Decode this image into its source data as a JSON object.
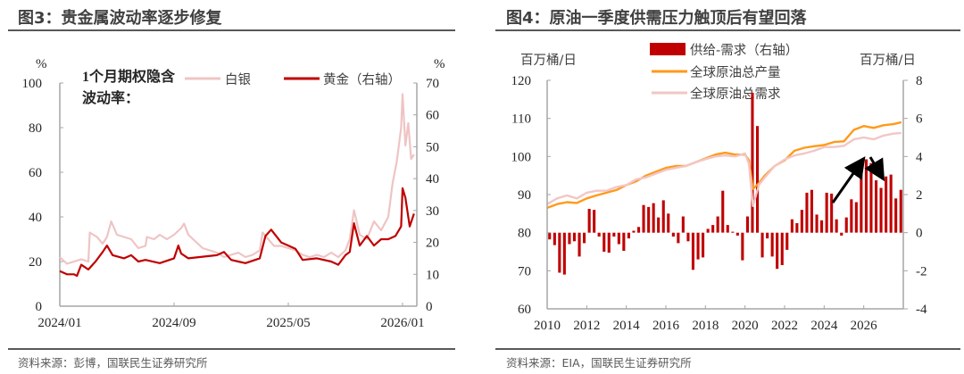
{
  "left": {
    "title": "图3：贵金属波动率逐步修复",
    "source": "资料来源：彭博，国联民生证券研究所",
    "chart_data": {
      "type": "line",
      "annotation": [
        "1个月期权隐含",
        "波动率："
      ],
      "y_unit_left": "%",
      "y_unit_right": "%",
      "x_ticks": [
        "2024/01",
        "2024/09",
        "2025/05",
        "2026/01"
      ],
      "x_tick_months": [
        0,
        8,
        16,
        24
      ],
      "ylim_left": [
        0,
        100
      ],
      "yticks_left": [
        0,
        20,
        40,
        60,
        80,
        100
      ],
      "ylim_right": [
        0,
        70
      ],
      "yticks_right": [
        0,
        10,
        20,
        30,
        40,
        50,
        60,
        70
      ],
      "legend_placement": "top",
      "grid": false,
      "x_unit_note": "months since 2024/01",
      "series": [
        {
          "name": "白银",
          "axis": "left",
          "color": "#efc4c4",
          "x": [
            0,
            0.5,
            1,
            1.5,
            2,
            2.1,
            2.6,
            3,
            3.3,
            3.6,
            4,
            4.5,
            5,
            5.5,
            6,
            6.1,
            6.6,
            7,
            7.5,
            8,
            8.5,
            8.7,
            9,
            9.5,
            10,
            10.5,
            11,
            11.5,
            12,
            12.5,
            13,
            13.5,
            14,
            14.2,
            14.6,
            15,
            15.5,
            16,
            16.5,
            17,
            17.5,
            18,
            18.5,
            19,
            19.5,
            20,
            20.3,
            20.6,
            21,
            21.5,
            22,
            22.5,
            23,
            23.3,
            23.6,
            23.9,
            24,
            24.2,
            24.4,
            24.6,
            24.8
          ],
          "y": [
            22,
            19,
            20,
            21,
            20,
            33,
            31,
            28,
            31,
            38,
            32,
            31,
            30,
            26,
            27,
            31,
            30,
            32,
            30,
            32,
            35,
            37,
            32,
            29,
            26,
            25,
            24,
            22,
            23,
            24,
            22,
            23,
            25,
            33,
            30,
            27,
            27,
            26,
            25,
            23,
            22,
            23,
            22,
            24,
            22,
            25,
            30,
            43,
            32,
            30,
            38,
            34,
            40,
            55,
            65,
            80,
            95,
            72,
            82,
            66,
            68
          ]
        },
        {
          "name": "黄金（右轴）",
          "axis": "right",
          "color": "#c00000",
          "x": [
            0,
            0.5,
            1,
            1.2,
            1.5,
            2,
            2.5,
            3,
            3.3,
            3.7,
            4.5,
            5,
            5.5,
            6,
            7,
            8,
            8.3,
            8.5,
            9,
            10,
            11,
            11.5,
            12,
            12.5,
            13,
            14,
            14.4,
            14.8,
            15.5,
            16,
            16.5,
            17,
            18,
            19,
            19.5,
            20,
            20.3,
            20.6,
            21,
            21.5,
            22,
            22.5,
            23,
            23.5,
            23.9,
            24,
            24.2,
            24.5,
            24.8
          ],
          "y": [
            11,
            10,
            10,
            9.5,
            13,
            11.5,
            14,
            17,
            19,
            16,
            15,
            16,
            14,
            14.5,
            13.5,
            15,
            19,
            16.5,
            15,
            15.5,
            16,
            17,
            14.5,
            14,
            13.5,
            15,
            22,
            24,
            20,
            19,
            18,
            14.5,
            15,
            14,
            13,
            16,
            17,
            26,
            19,
            22,
            19,
            21,
            21,
            22,
            25,
            37,
            34,
            25,
            29
          ]
        }
      ]
    }
  },
  "right": {
    "title": "图4：原油一季度供需压力触顶后有望回落",
    "source": "资料来源：EIA，国联民生证券研究所",
    "chart_data": {
      "type": "bar+line",
      "y_unit_left": "百万桶/日",
      "y_unit_right": "百万桶/日",
      "x_ticks": [
        "2010",
        "2012",
        "2014",
        "2016",
        "2018",
        "2020",
        "2022",
        "2024",
        "2026"
      ],
      "ylim_left": [
        60,
        120
      ],
      "yticks_left": [
        60,
        70,
        80,
        90,
        100,
        110,
        120
      ],
      "ylim_right": [
        -4,
        8
      ],
      "yticks_right": [
        -4,
        -2,
        0,
        2,
        4,
        6,
        8
      ],
      "legend_placement": "top",
      "grid": false,
      "x_start": 2010,
      "x_end": 2028,
      "bar_series": {
        "name": "供给-需求（右轴）",
        "axis": "right",
        "color": "#c00000",
        "frequency": "quarterly, 2010Q1–2027Q4",
        "values": [
          -0.35,
          -0.65,
          -2.1,
          -2.2,
          -0.6,
          -0.45,
          -1.25,
          -0.55,
          1.25,
          1.2,
          -0.2,
          -1.0,
          -1.05,
          -0.2,
          -0.6,
          -0.95,
          -0.3,
          0.1,
          0.3,
          1.45,
          1.35,
          1.55,
          0.8,
          1.7,
          1.0,
          -0.2,
          -0.55,
          0.85,
          -0.45,
          -1.95,
          -1.4,
          -1.3,
          0.2,
          0.4,
          0.85,
          2.2,
          0.4,
          0.05,
          -0.15,
          -1.45,
          0.85,
          7.35,
          5.6,
          -1.3,
          -0.3,
          -1.25,
          -1.9,
          -1.7,
          -0.9,
          0.7,
          0.5,
          1.2,
          2.1,
          2.25,
          0.95,
          0.65,
          2.1,
          2.05,
          0.7,
          -0.15,
          0.8,
          1.75,
          1.6,
          3.4,
          3.85,
          3.65,
          2.75,
          2.35,
          2.95,
          3.05,
          1.8,
          2.25
        ]
      },
      "line_series": [
        {
          "name": "全球原油总产量",
          "axis": "left",
          "color": "#ff9a1a",
          "x": [
            2010,
            2010.5,
            2011,
            2011.5,
            2012,
            2012.5,
            2013,
            2013.5,
            2014,
            2014.5,
            2015,
            2015.5,
            2016,
            2016.5,
            2017,
            2017.5,
            2018,
            2018.5,
            2019,
            2019.5,
            2020,
            2020.2,
            2020.4,
            2020.7,
            2021,
            2021.5,
            2022,
            2022.5,
            2023,
            2023.5,
            2024,
            2024.5,
            2025,
            2025.5,
            2026,
            2026.5,
            2027,
            2027.5,
            2027.9
          ],
          "y": [
            86.5,
            87.5,
            88,
            87.8,
            89,
            89.8,
            90.5,
            91.2,
            92.5,
            93.5,
            95,
            96,
            97,
            97.5,
            97.5,
            98.5,
            99.5,
            100.5,
            101,
            100.5,
            100.5,
            99,
            91.5,
            93,
            95,
            97.5,
            99,
            101.5,
            102.3,
            102.7,
            103,
            103.8,
            104,
            107,
            108,
            107.5,
            108.2,
            108.5,
            109
          ]
        },
        {
          "name": "全球原油总需求",
          "axis": "left",
          "color": "#f2c6c6",
          "x": [
            2010,
            2010.5,
            2011,
            2011.5,
            2012,
            2012.5,
            2013,
            2013.5,
            2014,
            2014.5,
            2015,
            2015.5,
            2016,
            2016.5,
            2017,
            2017.5,
            2018,
            2018.5,
            2019,
            2019.5,
            2020,
            2020.2,
            2020.4,
            2020.7,
            2021,
            2021.5,
            2022,
            2022.5,
            2023,
            2023.5,
            2024,
            2024.5,
            2025,
            2025.5,
            2026,
            2026.5,
            2027,
            2027.5,
            2027.9
          ],
          "y": [
            87.5,
            89,
            89.8,
            89,
            90.5,
            91,
            91,
            92,
            92.5,
            94,
            94.5,
            95.5,
            96.5,
            97,
            97.5,
            98.5,
            99.3,
            100,
            100.3,
            100,
            100.8,
            98,
            87,
            92.5,
            94.5,
            97.5,
            99.2,
            100.3,
            100.8,
            101.5,
            102.5,
            102.5,
            102.8,
            104.5,
            105,
            104.5,
            105.5,
            106,
            106.2
          ]
        }
      ],
      "annotations": [
        "arrow-up",
        "arrow-down"
      ]
    }
  }
}
